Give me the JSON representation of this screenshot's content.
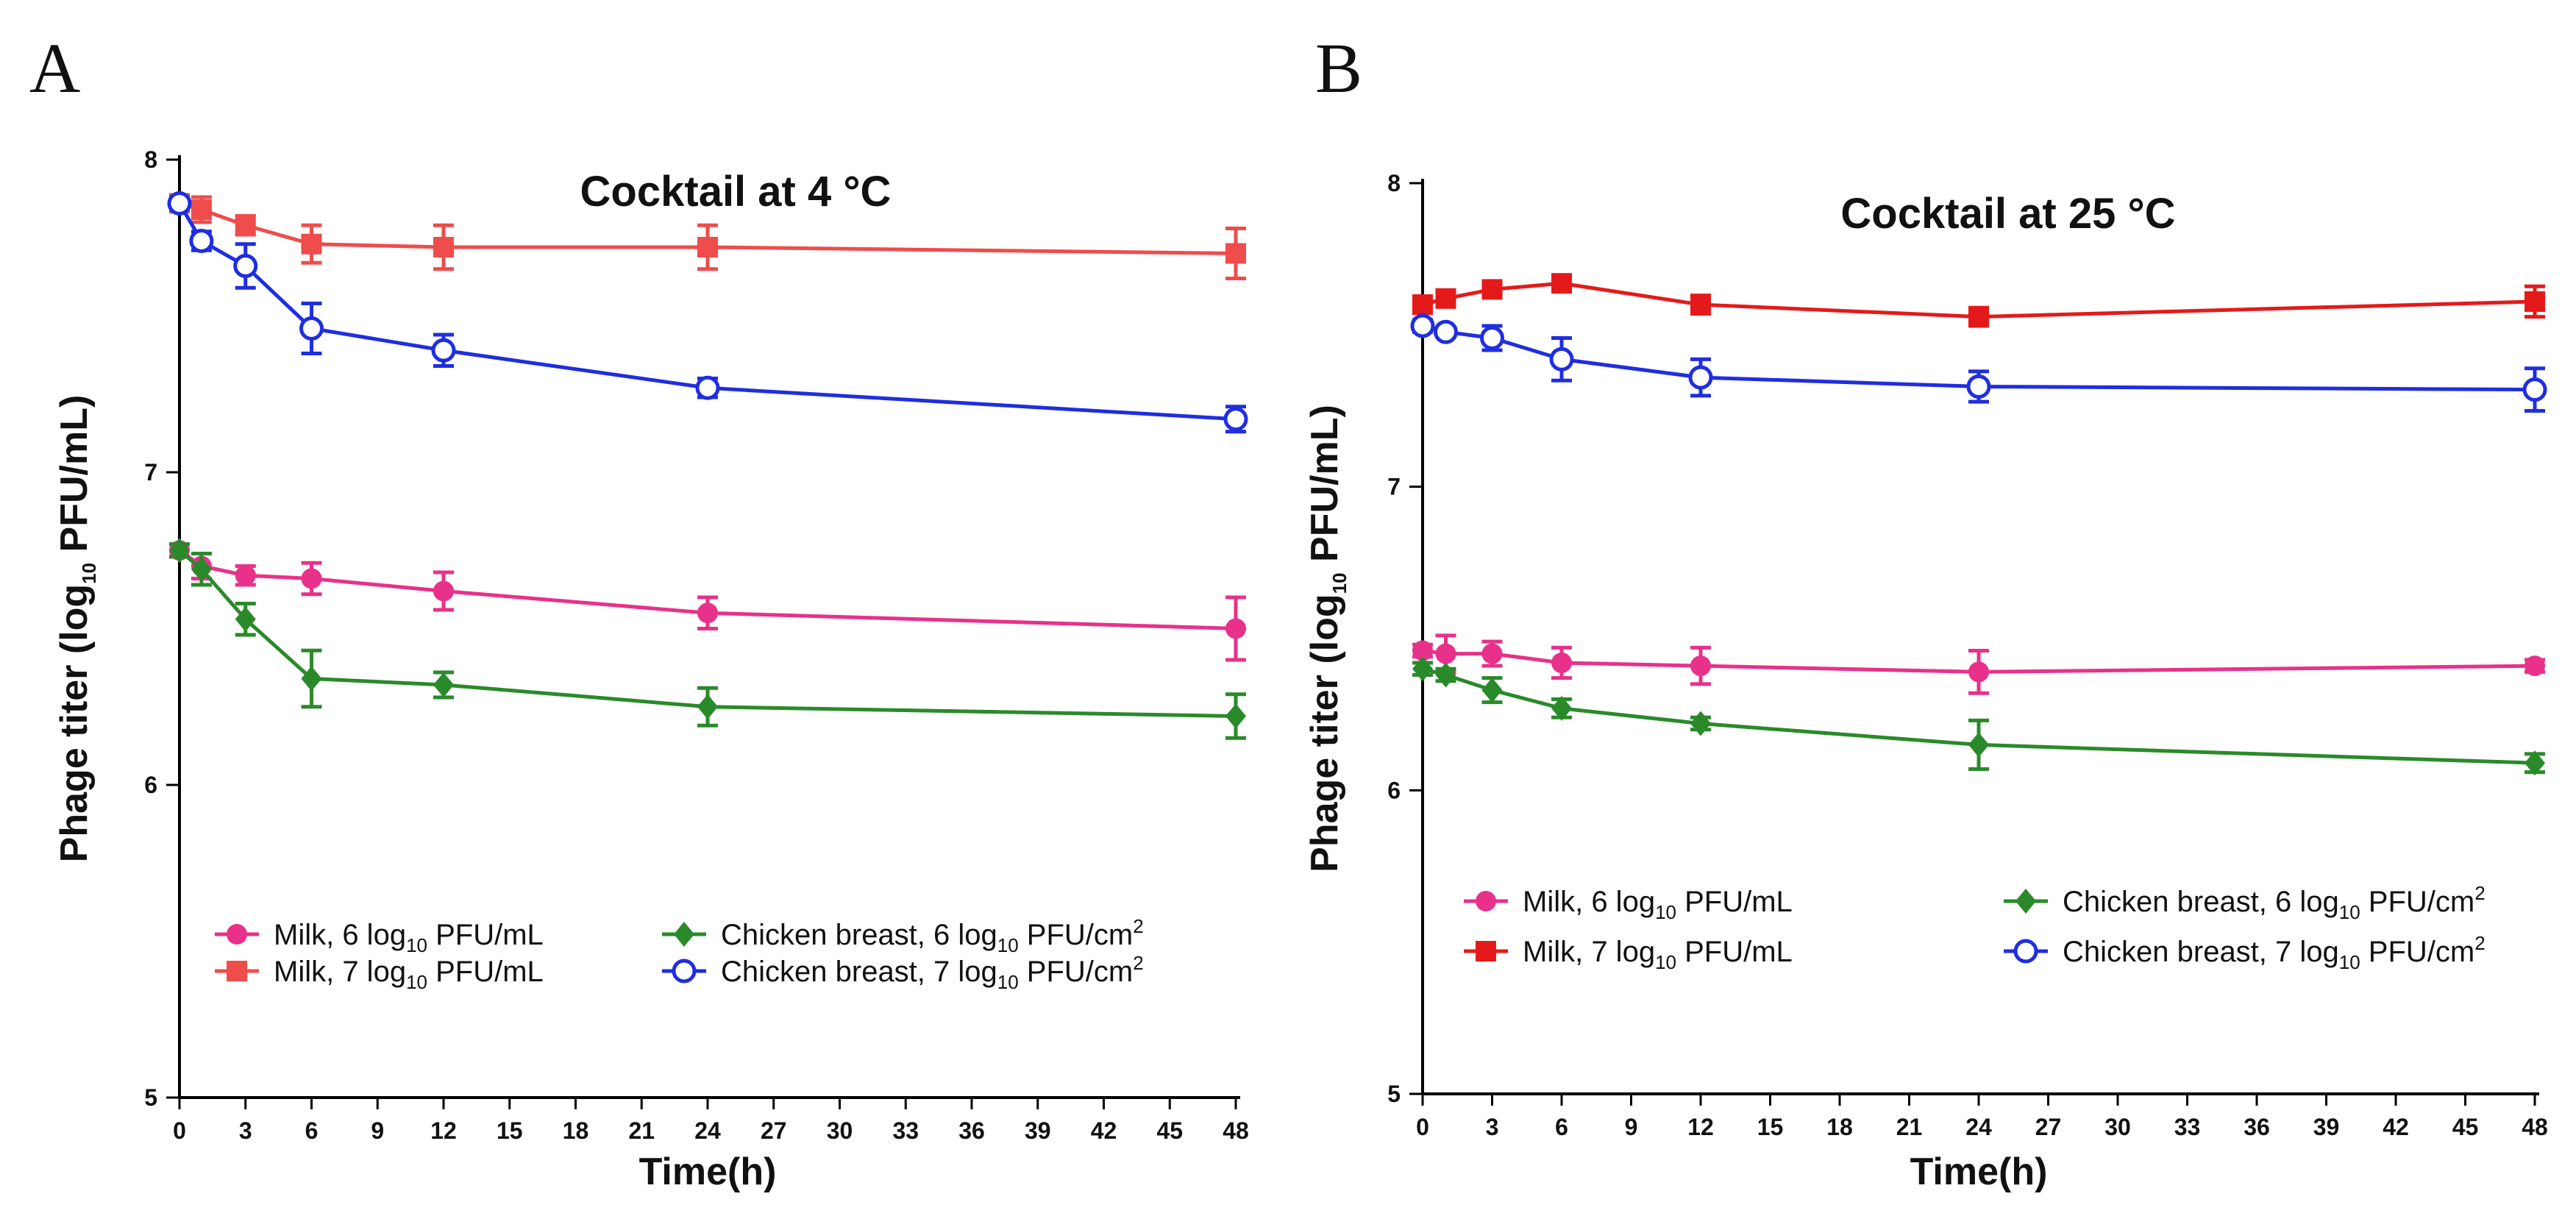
{
  "chart_data": [
    {
      "type": "line",
      "panel_label": "A",
      "title": "Cocktail at 4 °C",
      "xlabel": "Time(h)",
      "ylabel": {
        "pre": "Phage titer (log",
        "sub": "10",
        "post": " PFU/mL)"
      },
      "xlim": [
        0,
        48
      ],
      "ylim": [
        5,
        8
      ],
      "xticks": [
        0,
        3,
        6,
        9,
        12,
        15,
        18,
        21,
        24,
        27,
        30,
        33,
        36,
        39,
        42,
        45,
        48
      ],
      "yticks": [
        5,
        6,
        7,
        8
      ],
      "x": [
        0,
        1,
        3,
        6,
        12,
        24,
        48
      ],
      "legend_position": "lower-middle",
      "series": [
        {
          "name": "Milk, 6 log10 PFU/mL",
          "legend": {
            "pre": "Milk, 6 log",
            "sub": "10",
            "post": " PFU/mL",
            "sup": ""
          },
          "color": "#e8318a",
          "marker": "circle-filled",
          "values": [
            6.75,
            6.7,
            6.67,
            6.66,
            6.62,
            6.55,
            6.5
          ],
          "errors": [
            0.02,
            0.04,
            0.03,
            0.05,
            0.06,
            0.05,
            0.1
          ]
        },
        {
          "name": "Milk, 7 log10 PFU/mL",
          "legend": {
            "pre": "Milk, 7 log",
            "sub": "10",
            "post": " PFU/mL",
            "sup": ""
          },
          "color": "#ef4c4c",
          "marker": "square-filled",
          "values": [
            7.86,
            7.84,
            7.79,
            7.73,
            7.72,
            7.72,
            7.7
          ],
          "errors": [
            0.02,
            0.04,
            0.03,
            0.06,
            0.07,
            0.07,
            0.08
          ]
        },
        {
          "name": "Chicken breast, 6 log10 PFU/cm2",
          "legend": {
            "pre": "Chicken breast, 6 log",
            "sub": "10",
            "post": " PFU/cm",
            "sup": "2"
          },
          "color": "#2a8a2a",
          "marker": "diamond-filled",
          "values": [
            6.75,
            6.69,
            6.53,
            6.34,
            6.32,
            6.25,
            6.22
          ],
          "errors": [
            0.02,
            0.05,
            0.05,
            0.09,
            0.04,
            0.06,
            0.07
          ]
        },
        {
          "name": "Chicken breast, 7 log10 PFU/cm2",
          "legend": {
            "pre": "Chicken breast, 7 log",
            "sub": "10",
            "post": " PFU/cm",
            "sup": "2"
          },
          "color": "#1f2ee0",
          "marker": "circle-open",
          "values": [
            7.86,
            7.74,
            7.66,
            7.46,
            7.39,
            7.27,
            7.17
          ],
          "errors": [
            0.02,
            0.03,
            0.07,
            0.08,
            0.05,
            0.03,
            0.04
          ]
        }
      ],
      "legend_order": [
        0,
        2,
        1,
        3
      ]
    },
    {
      "type": "line",
      "panel_label": "B",
      "title": "Cocktail at 25 °C",
      "xlabel": "Time(h)",
      "ylabel": {
        "pre": "Phage titer (log",
        "sub": "10",
        "post": " PFU/mL)"
      },
      "xlim": [
        0,
        48
      ],
      "ylim": [
        5,
        8
      ],
      "xticks": [
        0,
        3,
        6,
        9,
        12,
        15,
        18,
        21,
        24,
        27,
        30,
        33,
        36,
        39,
        42,
        45,
        48
      ],
      "yticks": [
        5,
        6,
        7,
        8
      ],
      "x": [
        0,
        1,
        3,
        6,
        12,
        24,
        48
      ],
      "legend_position": "lower-middle",
      "series": [
        {
          "name": "Milk, 6 log10 PFU/mL",
          "legend": {
            "pre": "Milk, 6 log",
            "sub": "10",
            "post": " PFU/mL",
            "sup": ""
          },
          "color": "#e8318a",
          "marker": "circle-filled",
          "values": [
            6.46,
            6.45,
            6.45,
            6.42,
            6.41,
            6.39,
            6.41
          ],
          "errors": [
            0.02,
            0.06,
            0.04,
            0.05,
            0.06,
            0.07,
            0.02
          ]
        },
        {
          "name": "Milk, 7 log10 PFU/mL",
          "legend": {
            "pre": "Milk, 7 log",
            "sub": "10",
            "post": " PFU/mL",
            "sup": ""
          },
          "color": "#e41a1a",
          "marker": "square-filled",
          "values": [
            7.6,
            7.62,
            7.65,
            7.67,
            7.6,
            7.56,
            7.61
          ],
          "errors": [
            0.02,
            0.01,
            0.01,
            0.01,
            0.03,
            0.03,
            0.05
          ]
        },
        {
          "name": "Chicken breast, 6 log10 PFU/cm2",
          "legend": {
            "pre": "Chicken breast, 6 log",
            "sub": "10",
            "post": " PFU/cm",
            "sup": "2"
          },
          "color": "#2a8a2a",
          "marker": "diamond-filled",
          "values": [
            6.4,
            6.38,
            6.33,
            6.27,
            6.22,
            6.15,
            6.09
          ],
          "errors": [
            0.02,
            0.02,
            0.04,
            0.03,
            0.02,
            0.08,
            0.03
          ]
        },
        {
          "name": "Chicken breast, 7 log10 PFU/cm2",
          "legend": {
            "pre": "Chicken breast, 7 log",
            "sub": "10",
            "post": " PFU/cm",
            "sup": "2"
          },
          "color": "#1f2ee0",
          "marker": "circle-open",
          "values": [
            7.53,
            7.51,
            7.49,
            7.42,
            7.36,
            7.33,
            7.32
          ],
          "errors": [
            0.02,
            0.01,
            0.04,
            0.07,
            0.06,
            0.05,
            0.07
          ]
        }
      ],
      "legend_order": [
        0,
        2,
        1,
        3
      ]
    }
  ]
}
